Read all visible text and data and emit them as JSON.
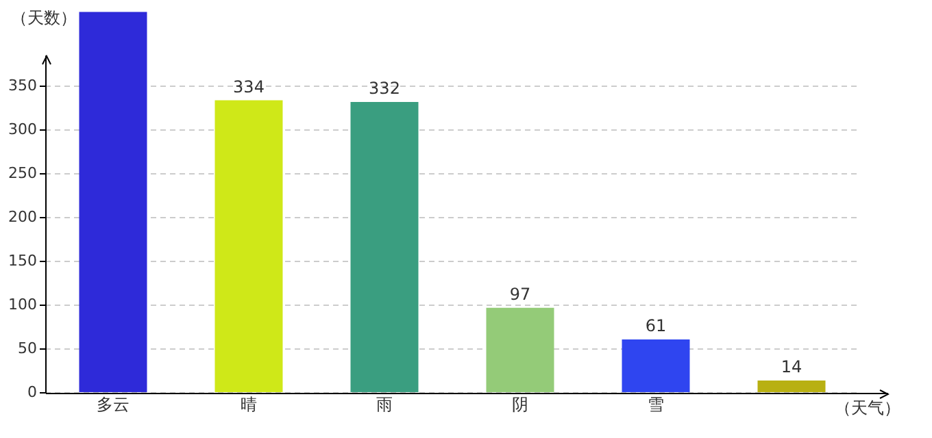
{
  "chart_data": {
    "type": "bar",
    "xlabel": "（天气）",
    "ylabel": "（天数）",
    "categories": [
      "多云",
      "晴",
      "雨",
      "阴",
      "雪",
      null
    ],
    "values": [
      435,
      334,
      332,
      97,
      61,
      14
    ],
    "value_labels": [
      null,
      "334",
      "332",
      "97",
      "61",
      "14"
    ],
    "colors": [
      "#2e2ad9",
      "#cfe818",
      "#3a9e80",
      "#94cb78",
      "#2f45f0",
      "#b8b012"
    ],
    "ylim": [
      0,
      435
    ],
    "yticks": [
      0,
      50,
      100,
      150,
      200,
      250,
      300,
      350
    ],
    "grid": "y",
    "legend": false
  }
}
